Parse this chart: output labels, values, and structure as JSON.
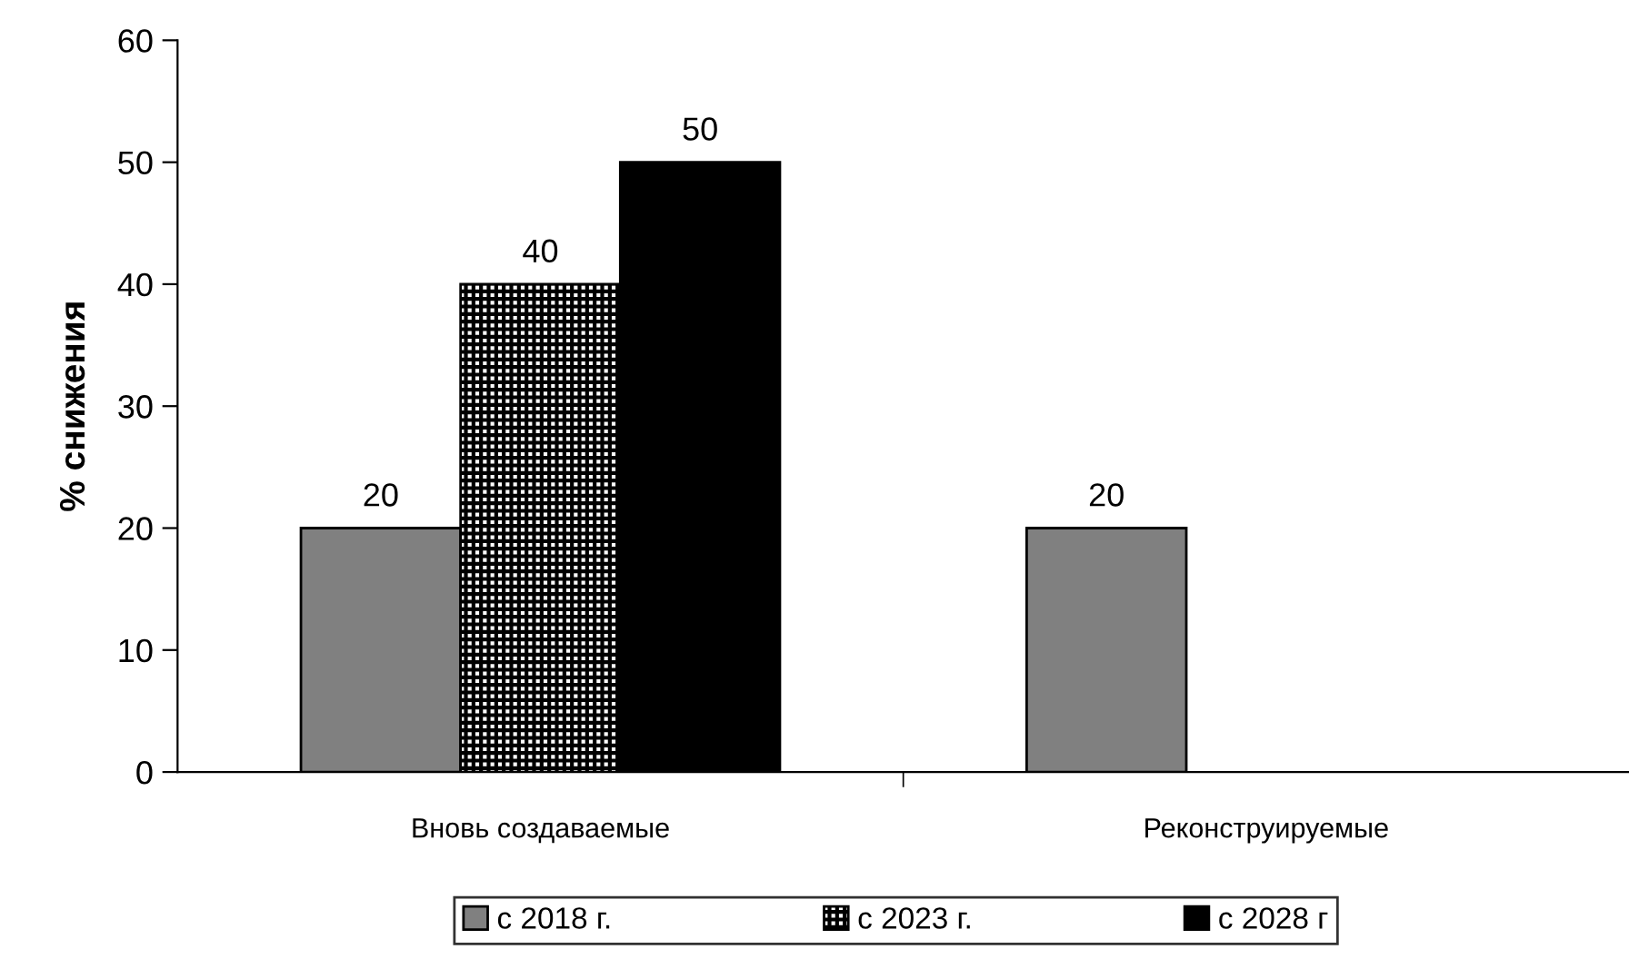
{
  "chart_data": {
    "type": "bar",
    "ylabel": "% снижения",
    "categories": [
      "Вновь создаваемые",
      "Реконструируемые"
    ],
    "series": [
      {
        "name": "с 2018 г.",
        "color": "#808080",
        "values": [
          20,
          20
        ]
      },
      {
        "name": "с 2023 г.",
        "color": "#000000",
        "values": [
          40,
          null
        ]
      },
      {
        "name": "с 2028 г",
        "color": "#000000",
        "values": [
          50,
          null
        ]
      }
    ],
    "ylim": [
      0,
      60
    ],
    "yticks": [
      0,
      10,
      20,
      30,
      40,
      50,
      60
    ],
    "grid": false,
    "legend": "bottom",
    "data_labels": true
  }
}
